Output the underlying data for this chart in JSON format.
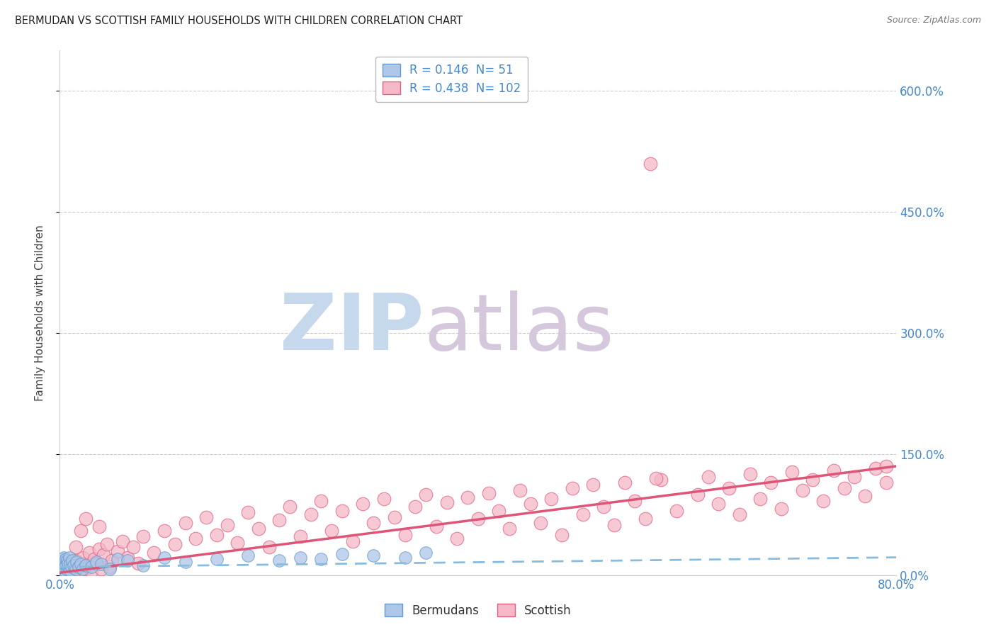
{
  "title": "BERMUDAN VS SCOTTISH FAMILY HOUSEHOLDS WITH CHILDREN CORRELATION CHART",
  "source": "Source: ZipAtlas.com",
  "ylabel": "Family Households with Children",
  "xmin": 0.0,
  "xmax": 0.8,
  "ymin": 0.0,
  "ymax": 6.5,
  "yticks": [
    0.0,
    1.5,
    3.0,
    4.5,
    6.0
  ],
  "ytick_labels": [
    "0.0%",
    "150.0%",
    "300.0%",
    "450.0%",
    "600.0%"
  ],
  "xticks": [
    0.0,
    0.8
  ],
  "xtick_labels": [
    "0.0%",
    "80.0%"
  ],
  "legend_r_bermudans": "0.146",
  "legend_n_bermudans": "51",
  "legend_r_scottish": "0.438",
  "legend_n_scottish": "102",
  "bermudans_fill_color": "#aec6e8",
  "bermudans_edge_color": "#6699cc",
  "scottish_fill_color": "#f4b8c8",
  "scottish_edge_color": "#e06080",
  "trendline_bermudans_color": "#88bbdd",
  "trendline_scottish_color": "#dd5577",
  "axis_label_color": "#4488cc",
  "title_color": "#222222",
  "watermark_zip_color": "#c5d8ec",
  "watermark_atlas_color": "#d5c8dc",
  "background_color": "#ffffff",
  "grid_color": "#cccccc",
  "bermudans_scatter_x": [
    0.001,
    0.001,
    0.002,
    0.002,
    0.002,
    0.003,
    0.003,
    0.003,
    0.004,
    0.004,
    0.004,
    0.005,
    0.005,
    0.005,
    0.006,
    0.006,
    0.007,
    0.007,
    0.008,
    0.008,
    0.009,
    0.009,
    0.01,
    0.01,
    0.011,
    0.012,
    0.013,
    0.015,
    0.016,
    0.018,
    0.02,
    0.022,
    0.025,
    0.03,
    0.035,
    0.04,
    0.048,
    0.055,
    0.065,
    0.08,
    0.1,
    0.12,
    0.15,
    0.18,
    0.21,
    0.23,
    0.25,
    0.27,
    0.3,
    0.33,
    0.35
  ],
  "bermudans_scatter_y": [
    0.08,
    0.15,
    0.05,
    0.12,
    0.2,
    0.08,
    0.18,
    0.1,
    0.06,
    0.14,
    0.22,
    0.09,
    0.16,
    0.05,
    0.12,
    0.2,
    0.07,
    0.18,
    0.1,
    0.15,
    0.08,
    0.22,
    0.06,
    0.14,
    0.1,
    0.18,
    0.12,
    0.08,
    0.16,
    0.1,
    0.14,
    0.08,
    0.12,
    0.1,
    0.16,
    0.14,
    0.08,
    0.2,
    0.18,
    0.12,
    0.22,
    0.16,
    0.2,
    0.24,
    0.18,
    0.22,
    0.2,
    0.26,
    0.24,
    0.22,
    0.28
  ],
  "scottish_scatter_x": [
    0.005,
    0.008,
    0.01,
    0.012,
    0.014,
    0.015,
    0.018,
    0.02,
    0.022,
    0.025,
    0.028,
    0.03,
    0.033,
    0.035,
    0.038,
    0.04,
    0.042,
    0.045,
    0.048,
    0.05,
    0.055,
    0.06,
    0.065,
    0.07,
    0.075,
    0.08,
    0.09,
    0.1,
    0.11,
    0.12,
    0.13,
    0.14,
    0.15,
    0.16,
    0.17,
    0.18,
    0.19,
    0.2,
    0.21,
    0.22,
    0.23,
    0.24,
    0.25,
    0.26,
    0.27,
    0.28,
    0.29,
    0.3,
    0.31,
    0.32,
    0.33,
    0.34,
    0.35,
    0.36,
    0.37,
    0.38,
    0.39,
    0.4,
    0.41,
    0.42,
    0.43,
    0.44,
    0.45,
    0.46,
    0.47,
    0.48,
    0.49,
    0.5,
    0.51,
    0.52,
    0.53,
    0.54,
    0.55,
    0.56,
    0.575,
    0.59,
    0.61,
    0.62,
    0.63,
    0.64,
    0.65,
    0.66,
    0.67,
    0.68,
    0.69,
    0.7,
    0.71,
    0.72,
    0.73,
    0.74,
    0.75,
    0.76,
    0.77,
    0.78,
    0.79,
    0.565,
    0.038,
    0.02,
    0.015,
    0.025,
    0.57,
    0.79
  ],
  "scottish_scatter_y": [
    0.04,
    0.06,
    0.08,
    0.12,
    0.05,
    0.18,
    0.1,
    0.15,
    0.22,
    0.08,
    0.28,
    0.05,
    0.2,
    0.14,
    0.32,
    0.08,
    0.25,
    0.38,
    0.1,
    0.18,
    0.3,
    0.42,
    0.22,
    0.35,
    0.15,
    0.48,
    0.28,
    0.55,
    0.38,
    0.65,
    0.45,
    0.72,
    0.5,
    0.62,
    0.4,
    0.78,
    0.58,
    0.35,
    0.68,
    0.85,
    0.48,
    0.75,
    0.92,
    0.55,
    0.8,
    0.42,
    0.88,
    0.65,
    0.95,
    0.72,
    0.5,
    0.85,
    1.0,
    0.6,
    0.9,
    0.45,
    0.96,
    0.7,
    1.02,
    0.8,
    0.58,
    1.05,
    0.88,
    0.65,
    0.95,
    0.5,
    1.08,
    0.75,
    1.12,
    0.85,
    0.62,
    1.15,
    0.92,
    0.7,
    1.18,
    0.8,
    1.0,
    1.22,
    0.88,
    1.08,
    0.75,
    1.25,
    0.95,
    1.15,
    0.82,
    1.28,
    1.05,
    1.18,
    0.92,
    1.3,
    1.08,
    1.22,
    0.98,
    1.32,
    1.15,
    5.1,
    0.6,
    0.55,
    0.35,
    0.7,
    1.2,
    1.35
  ]
}
